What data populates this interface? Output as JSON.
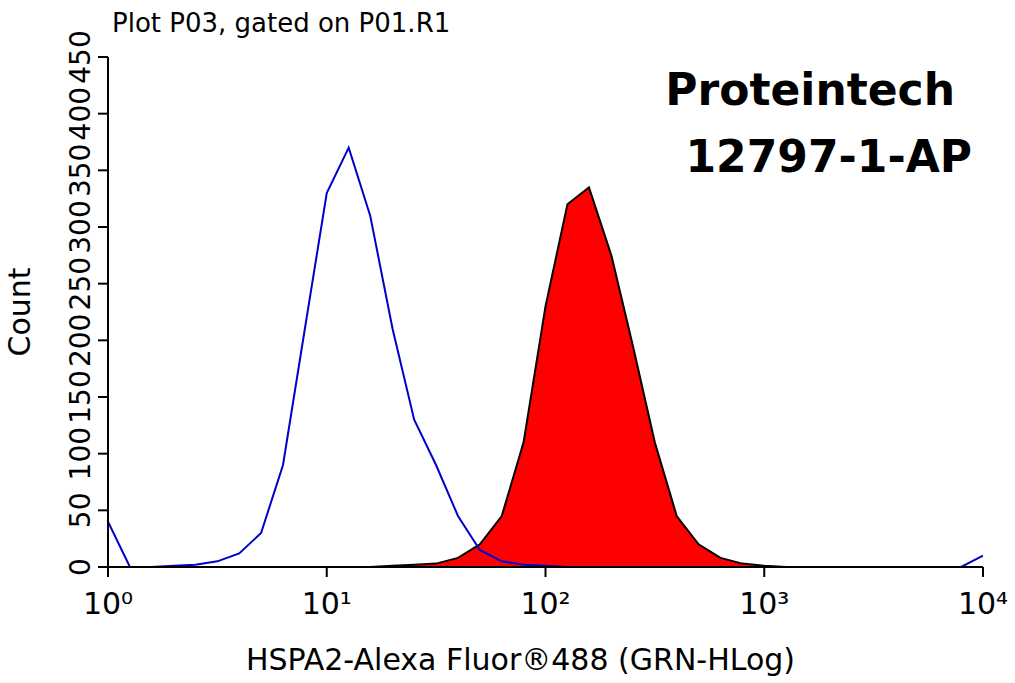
{
  "chart_data": {
    "type": "line",
    "title": "Plot P03, gated on P01.R1",
    "annotations": [
      "Proteintech",
      "12797-1-AP"
    ],
    "x_label": "HSPA2-Alexa Fluor®488 (GRN-HLog)",
    "y_label": "Count",
    "log": "x",
    "x": [
      1,
      1.26,
      1.58,
      2,
      2.51,
      3.16,
      3.98,
      5.01,
      6.31,
      7.94,
      10,
      12.6,
      15.8,
      20,
      25.1,
      31.6,
      39.8,
      50.1,
      63.1,
      79.4,
      100,
      126,
      158,
      200,
      251,
      316,
      398,
      501,
      631,
      794,
      1000,
      1260,
      1580,
      2000,
      2510,
      3160,
      3980,
      5010,
      6310,
      7940,
      10000
    ],
    "series": [
      {
        "type": "area",
        "color": "#ff0000",
        "values": [
          0,
          0,
          0,
          0,
          0,
          0,
          0,
          0,
          0,
          0,
          0,
          0,
          0,
          1,
          2,
          3,
          8,
          20,
          45,
          110,
          230,
          320,
          335,
          275,
          195,
          110,
          45,
          20,
          8,
          3,
          1,
          0,
          0,
          0,
          0,
          0,
          0,
          0,
          0,
          0,
          0
        ]
      },
      {
        "type": "line",
        "color": "#0000cc",
        "values": [
          40,
          0,
          0,
          1,
          2,
          5,
          12,
          30,
          90,
          210,
          330,
          370,
          310,
          210,
          130,
          90,
          45,
          15,
          5,
          2,
          1,
          0,
          0,
          0,
          0,
          0,
          0,
          0,
          0,
          0,
          0,
          0,
          0,
          0,
          0,
          0,
          0,
          0,
          0,
          0,
          10
        ]
      }
    ],
    "xlim": [
      1,
      10000
    ],
    "xticks": [
      {
        "value": 1,
        "label": "10⁰"
      },
      {
        "value": 10,
        "label": "10¹"
      },
      {
        "value": 100,
        "label": "10²"
      },
      {
        "value": 1000,
        "label": "10³"
      },
      {
        "value": 10000,
        "label": "10⁴"
      }
    ],
    "ylim": [
      0,
      450
    ],
    "yticks": [
      0,
      50,
      100,
      150,
      200,
      250,
      300,
      350,
      400,
      450
    ],
    "grid": false
  }
}
